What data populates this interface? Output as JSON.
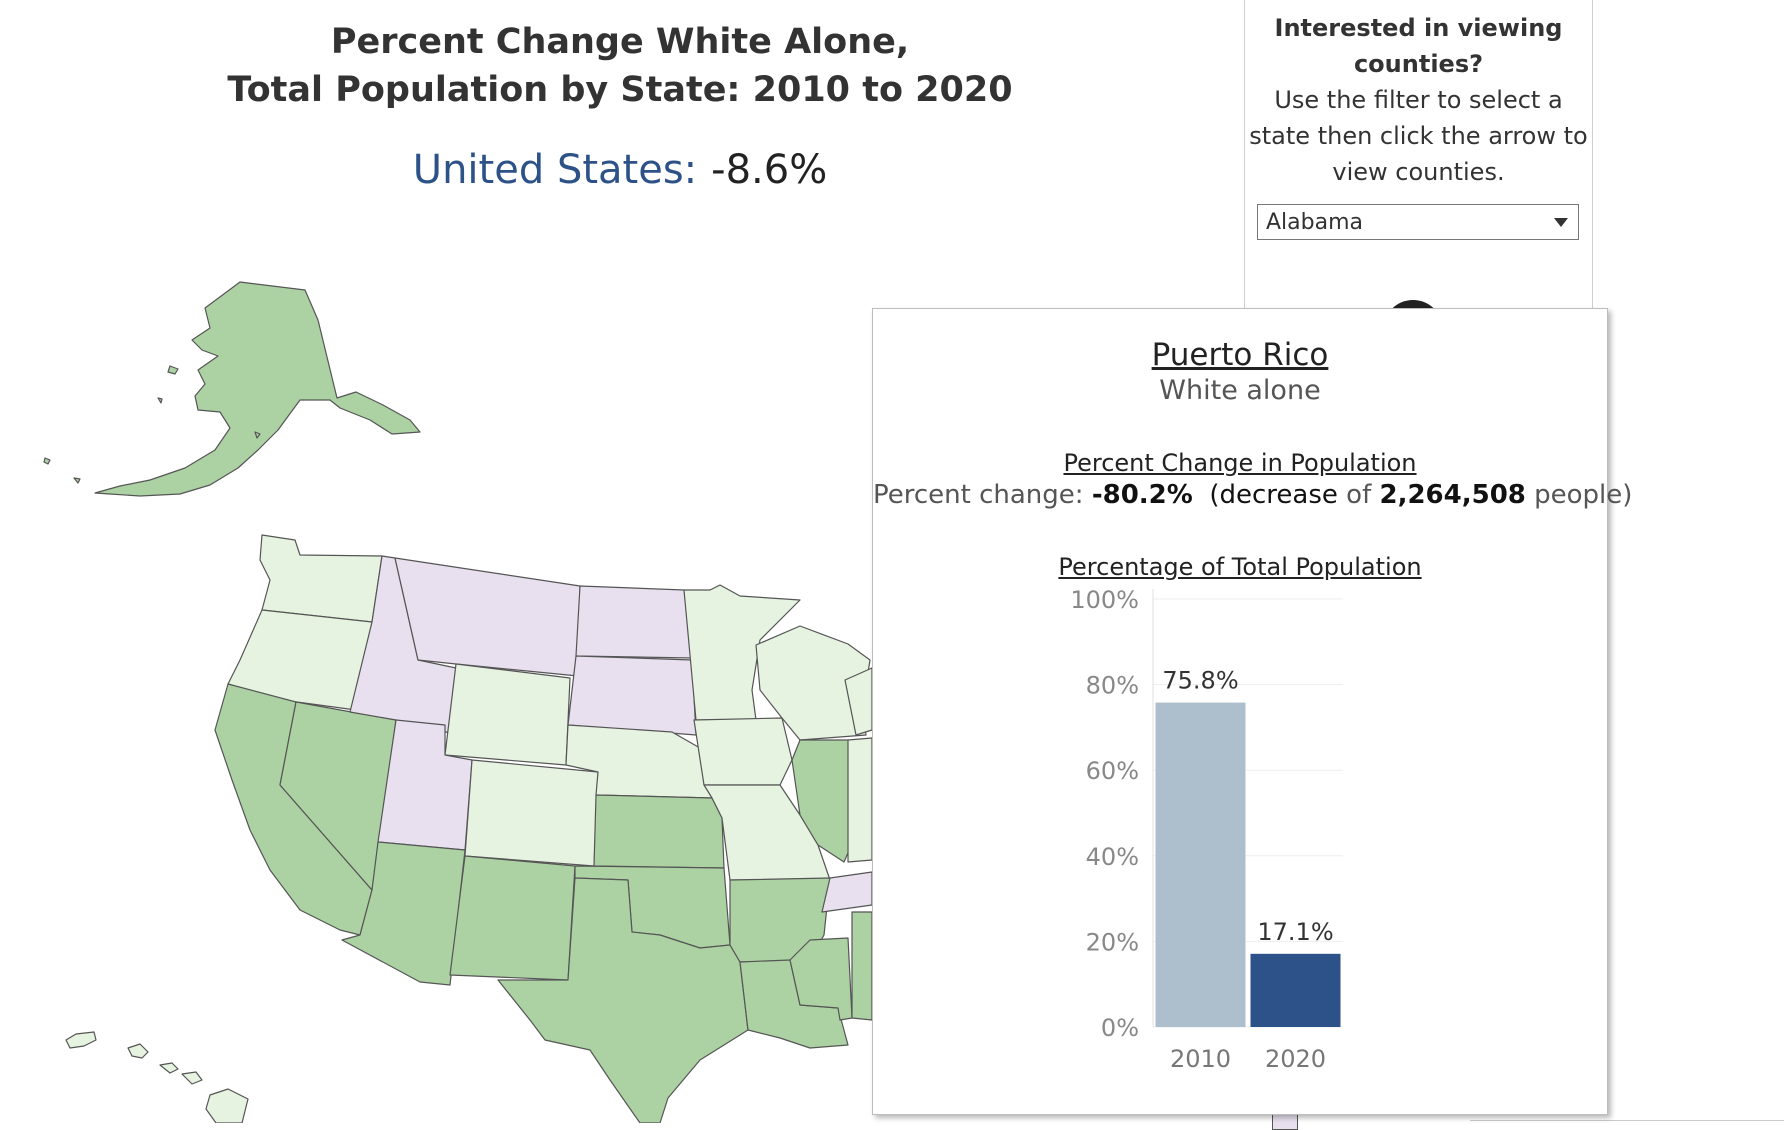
{
  "header": {
    "title_line1": "Percent Change White Alone,",
    "title_line2": "Total Population by State: 2010 to 2020",
    "us_label": "United States:",
    "us_value": "-8.6%"
  },
  "filter": {
    "title_line1": "Interested in viewing",
    "title_line2": "counties?",
    "body_line1": "Use the filter to select a",
    "body_line2": "state then click the arrow to",
    "body_line3": "view counties.",
    "selected_state": "Alabama"
  },
  "map": {
    "colors": {
      "strong_decrease": "#acd2a3",
      "decrease": "#e6f3e1",
      "increase": "#e8dfef",
      "border": "#555555"
    },
    "states": {
      "alaska": "strong_decrease",
      "hawaii": "decrease",
      "washington": "decrease",
      "oregon": "decrease",
      "california": "strong_decrease",
      "nevada": "strong_decrease",
      "idaho": "increase",
      "montana": "increase",
      "wyoming": "decrease",
      "utah": "increase",
      "colorado": "decrease",
      "arizona": "strong_decrease",
      "new_mexico": "strong_decrease",
      "north_dakota": "increase",
      "south_dakota": "increase",
      "nebraska": "decrease",
      "kansas": "strong_decrease",
      "oklahoma": "strong_decrease",
      "texas": "strong_decrease",
      "minnesota": "decrease",
      "iowa": "decrease",
      "missouri": "decrease",
      "arkansas": "strong_decrease",
      "louisiana": "strong_decrease",
      "wisconsin": "decrease",
      "illinois": "strong_decrease",
      "mississippi": "strong_decrease",
      "tennessee": "increase"
    }
  },
  "tooltip": {
    "name": "Puerto Rico",
    "group": "White alone",
    "section1_title": "Percent Change in Population",
    "change_prefix": "Percent change:",
    "change_value": "-80.2%",
    "change_direction": "decrease",
    "change_of": "of",
    "change_count": "2,264,508",
    "change_suffix": "people)",
    "section2_title": "Percentage of Total Population"
  },
  "chart_data": {
    "type": "bar",
    "title": "Percentage of Total Population",
    "categories": [
      "2010",
      "2020"
    ],
    "values": [
      75.8,
      17.1
    ],
    "value_labels": [
      "75.8%",
      "17.1%"
    ],
    "ylim": [
      0,
      100
    ],
    "y_ticks": [
      "0%",
      "20%",
      "40%",
      "60%",
      "80%",
      "100%"
    ],
    "y_tick_values": [
      0,
      20,
      40,
      60,
      80,
      100
    ],
    "bar_colors": [
      "#adbfcd",
      "#2d5289"
    ],
    "grid": true
  }
}
